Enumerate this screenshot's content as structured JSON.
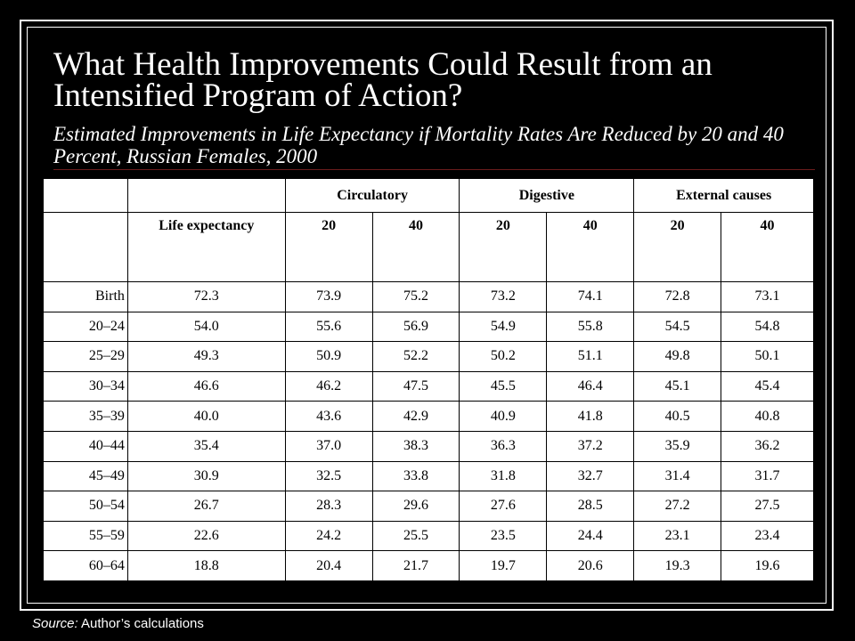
{
  "title": "What Health Improvements Could Result from an Intensified Program of Action?",
  "subtitle": "Estimated Improvements in Life Expectancy if Mortality Rates Are Reduced by 20 and 40 Percent, Russian Females, 2000",
  "table": {
    "groups": [
      "Circulatory",
      "Digestive",
      "External causes"
    ],
    "subheaders": [
      "Life expectancy",
      "20",
      "40",
      "20",
      "40",
      "20",
      "40"
    ],
    "rows": [
      [
        "Birth",
        "72.3",
        "73.9",
        "75.2",
        "73.2",
        "74.1",
        "72.8",
        "73.1"
      ],
      [
        "20–24",
        "54.0",
        "55.6",
        "56.9",
        "54.9",
        "55.8",
        "54.5",
        "54.8"
      ],
      [
        "25–29",
        "49.3",
        "50.9",
        "52.2",
        "50.2",
        "51.1",
        "49.8",
        "50.1"
      ],
      [
        "30–34",
        "46.6",
        "46.2",
        "47.5",
        "45.5",
        "46.4",
        "45.1",
        "45.4"
      ],
      [
        "35–39",
        "40.0",
        "43.6",
        "42.9",
        "40.9",
        "41.8",
        "40.5",
        "40.8"
      ],
      [
        "40–44",
        "35.4",
        "37.0",
        "38.3",
        "36.3",
        "37.2",
        "35.9",
        "36.2"
      ],
      [
        "45–49",
        "30.9",
        "32.5",
        "33.8",
        "31.8",
        "32.7",
        "31.4",
        "31.7"
      ],
      [
        "50–54",
        "26.7",
        "28.3",
        "29.6",
        "27.6",
        "28.5",
        "27.2",
        "27.5"
      ],
      [
        "55–59",
        "22.6",
        "24.2",
        "25.5",
        "23.5",
        "24.4",
        "23.1",
        "23.4"
      ],
      [
        "60–64",
        "18.8",
        "20.4",
        "21.7",
        "19.7",
        "20.6",
        "19.3",
        "19.6"
      ]
    ]
  },
  "source": {
    "label": "Source:",
    "text": " Author’s calculations"
  }
}
